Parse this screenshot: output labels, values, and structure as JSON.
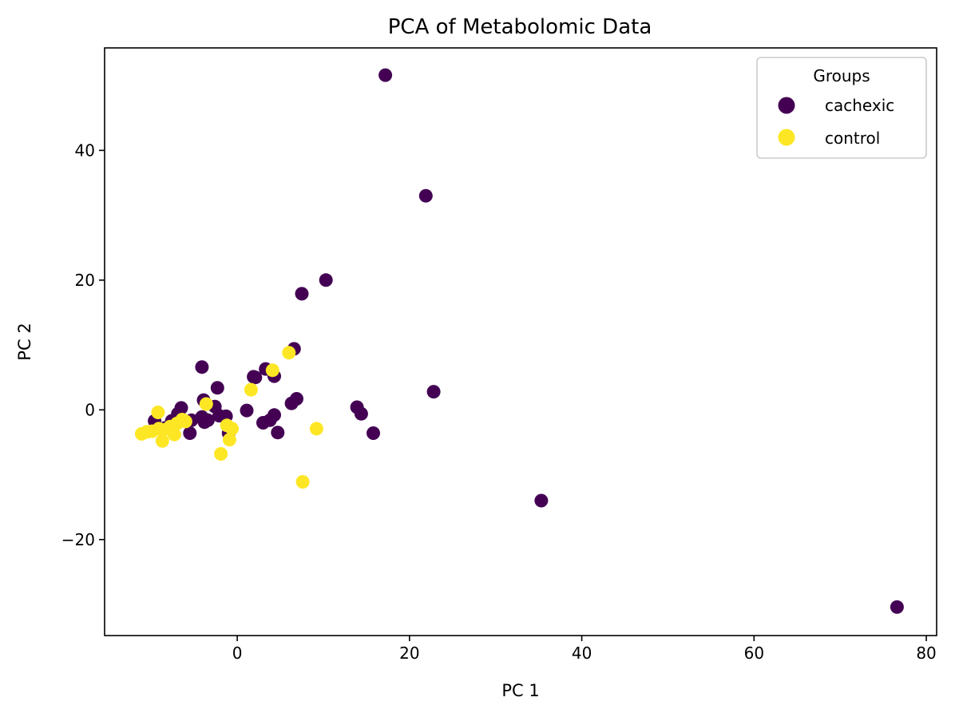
{
  "chart_data": {
    "type": "scatter",
    "title": "PCA of Metabolomic Data",
    "xlabel": "PC 1",
    "ylabel": "PC 2",
    "xlim": [
      -15.4,
      81.2
    ],
    "ylim": [
      -34.8,
      55.8
    ],
    "xticks": [
      0,
      20,
      40,
      60,
      80
    ],
    "yticks": [
      -20,
      0,
      20,
      40
    ],
    "xtick_labels": [
      "0",
      "20",
      "40",
      "60",
      "80"
    ],
    "ytick_labels": [
      "−20",
      "0",
      "20",
      "40"
    ],
    "grid": false,
    "legend": {
      "title": "Groups",
      "placement": "top-right",
      "entries": [
        "cachexic",
        "control"
      ]
    },
    "series": [
      {
        "name": "cachexic",
        "color": "#440154",
        "points": [
          [
            17.2,
            51.6
          ],
          [
            21.9,
            33.0
          ],
          [
            10.3,
            20.0
          ],
          [
            7.5,
            17.9
          ],
          [
            6.6,
            9.4
          ],
          [
            3.3,
            6.3
          ],
          [
            4.3,
            5.2
          ],
          [
            1.9,
            5.1
          ],
          [
            2.1,
            5.0
          ],
          [
            -4.1,
            6.6
          ],
          [
            22.8,
            2.8
          ],
          [
            6.9,
            1.7
          ],
          [
            6.3,
            1.0
          ],
          [
            13.9,
            0.4
          ],
          [
            14.4,
            -0.6
          ],
          [
            15.8,
            -3.6
          ],
          [
            4.3,
            -0.8
          ],
          [
            3.8,
            -1.6
          ],
          [
            3.0,
            -2.0
          ],
          [
            4.7,
            -3.5
          ],
          [
            1.1,
            -0.1
          ],
          [
            -2.3,
            3.4
          ],
          [
            -3.9,
            1.5
          ],
          [
            -2.6,
            0.5
          ],
          [
            -1.3,
            -1.0
          ],
          [
            -2.1,
            -0.9
          ],
          [
            -3.4,
            -1.6
          ],
          [
            -3.8,
            -1.9
          ],
          [
            -4.1,
            -1.1
          ],
          [
            -5.3,
            -1.6
          ],
          [
            -5.5,
            -3.6
          ],
          [
            -6.5,
            0.3
          ],
          [
            -6.9,
            -0.6
          ],
          [
            -7.6,
            -1.7
          ],
          [
            -8.4,
            -2.8
          ],
          [
            -9.6,
            -1.7
          ],
          [
            -1.0,
            -3.6
          ],
          [
            35.3,
            -14.0
          ],
          [
            76.6,
            -30.4
          ]
        ]
      },
      {
        "name": "control",
        "color": "#fde725",
        "points": [
          [
            6.0,
            8.8
          ],
          [
            4.1,
            6.1
          ],
          [
            1.6,
            3.1
          ],
          [
            -3.6,
            0.9
          ],
          [
            -9.2,
            -0.4
          ],
          [
            -6.4,
            -1.5
          ],
          [
            -6.0,
            -1.8
          ],
          [
            -7.0,
            -2.1
          ],
          [
            -7.8,
            -2.6
          ],
          [
            -8.6,
            -3.1
          ],
          [
            -9.1,
            -2.9
          ],
          [
            -9.9,
            -3.3
          ],
          [
            -10.5,
            -3.4
          ],
          [
            -11.1,
            -3.7
          ],
          [
            -8.7,
            -4.8
          ],
          [
            -7.3,
            -3.8
          ],
          [
            -1.2,
            -2.4
          ],
          [
            -0.6,
            -2.9
          ],
          [
            -0.9,
            -4.6
          ],
          [
            -1.9,
            -6.8
          ],
          [
            9.2,
            -2.9
          ],
          [
            7.6,
            -11.1
          ]
        ]
      }
    ]
  }
}
